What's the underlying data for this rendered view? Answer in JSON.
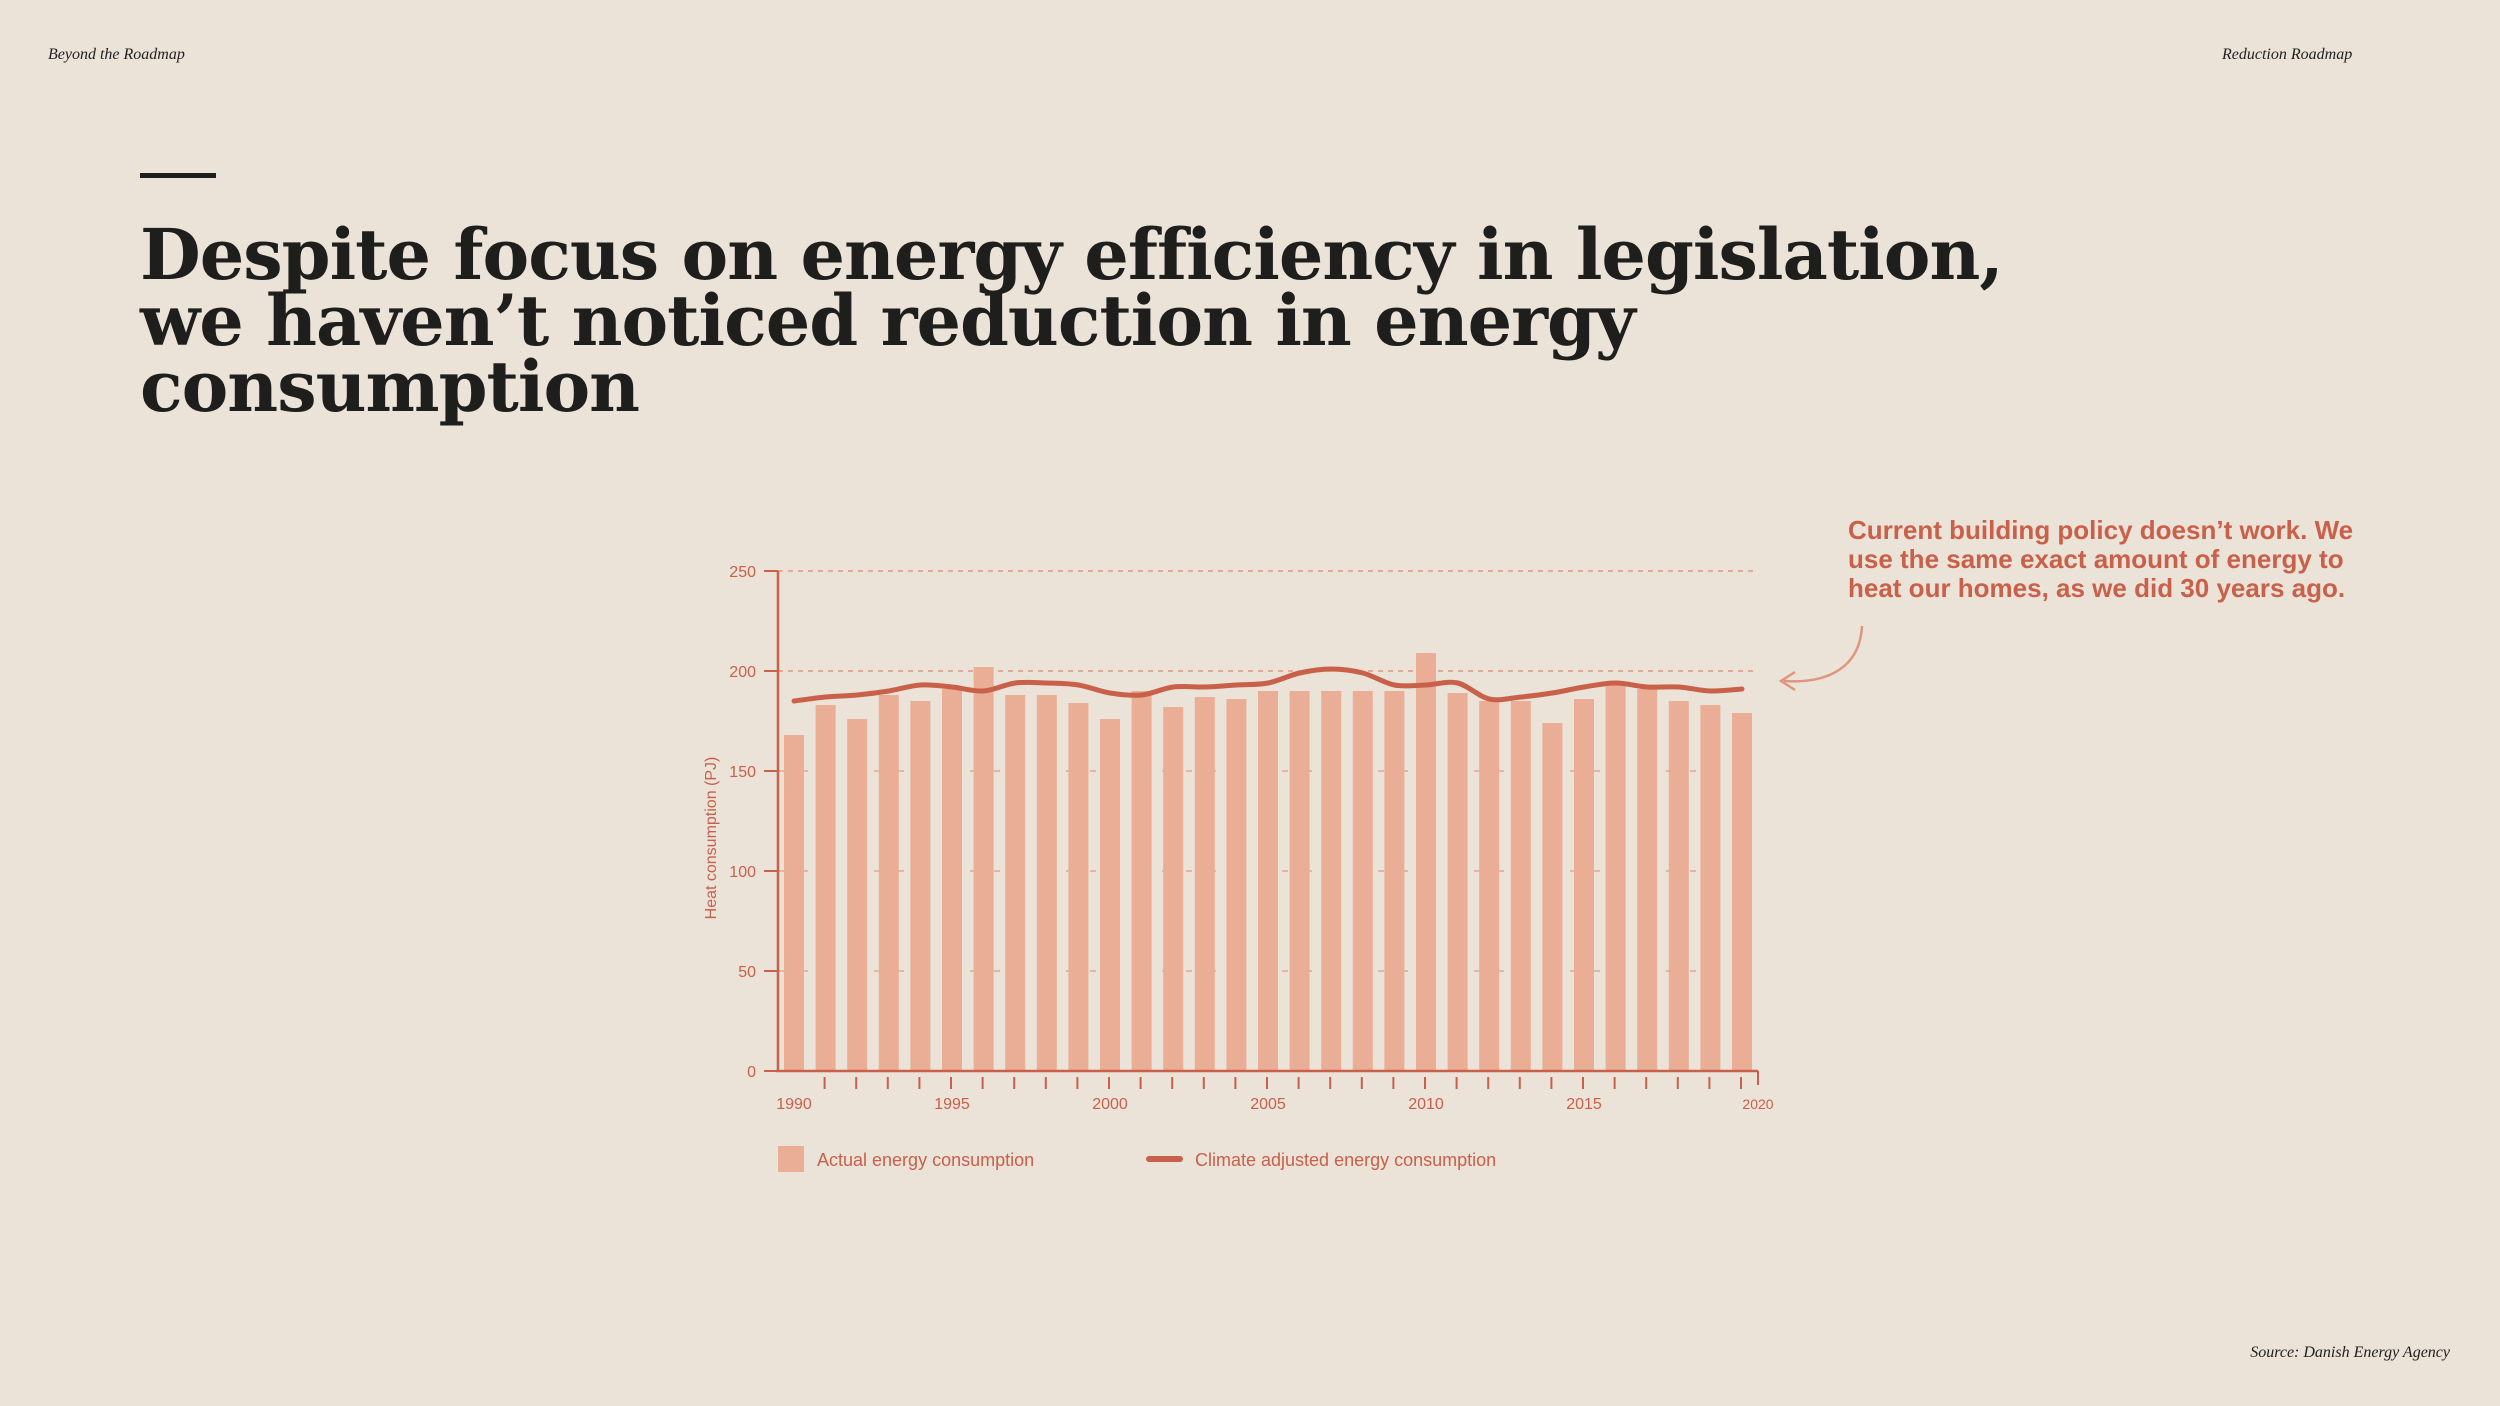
{
  "header": {
    "left": "Beyond the Roadmap",
    "right": "Reduction Roadmap"
  },
  "title": "Despite focus on energy efficiency in legislation, we haven’t noticed reduction in energy consumption",
  "annotation": "Current building policy doesn’t work. We use the same exact amount of energy to heat our homes, as we did 30 years ago.",
  "source": "Source: Danish Energy Agency",
  "colors": {
    "background": "#ebe2d8",
    "bar": "#eaae96",
    "line": "#c9604a",
    "axis": "#c9604a",
    "title": "#1e1e1c"
  },
  "chart_data": {
    "type": "bar",
    "title": "",
    "xlabel": "",
    "ylabel": "Heat consumption (PJ)",
    "ylim": [
      0,
      250
    ],
    "yticks": [
      0,
      50,
      100,
      150,
      200,
      250
    ],
    "xtick_labels": [
      "1990",
      "1995",
      "2000",
      "2005",
      "2010",
      "2015",
      "2020"
    ],
    "grid": "dashed horizontal at 200 and 250",
    "x": [
      1990,
      1991,
      1992,
      1993,
      1994,
      1995,
      1996,
      1997,
      1998,
      1999,
      2000,
      2001,
      2002,
      2003,
      2004,
      2005,
      2006,
      2007,
      2008,
      2009,
      2010,
      2011,
      2012,
      2013,
      2014,
      2015,
      2016,
      2017,
      2018,
      2019,
      2020
    ],
    "series": [
      {
        "name": "Actual energy consumption",
        "kind": "bar",
        "values": [
          168,
          183,
          176,
          188,
          185,
          191,
          202,
          188,
          188,
          184,
          176,
          190,
          182,
          187,
          186,
          190,
          190,
          190,
          190,
          190,
          209,
          189,
          185,
          185,
          174,
          186,
          193,
          191,
          185,
          183,
          179
        ]
      },
      {
        "name": "Climate adjusted energy consumption",
        "kind": "line",
        "values": [
          185,
          187,
          188,
          190,
          193,
          192,
          190,
          194,
          194,
          193,
          189,
          188,
          192,
          192,
          193,
          194,
          199,
          201,
          199,
          193,
          193,
          194,
          186,
          187,
          189,
          192,
          194,
          192,
          192,
          190,
          191
        ]
      }
    ],
    "legend": "bottom-left"
  }
}
